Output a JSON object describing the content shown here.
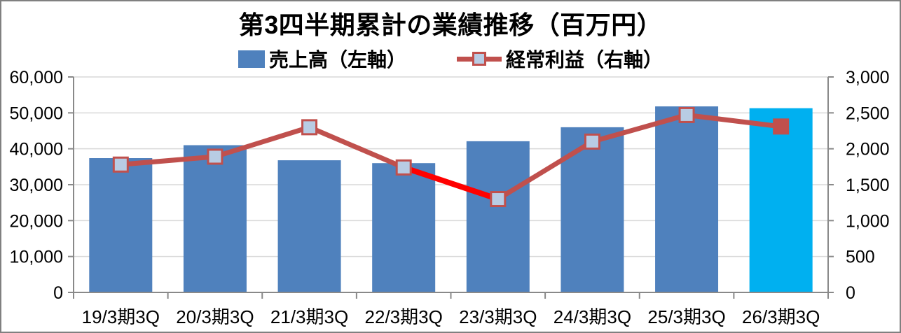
{
  "chart_data": {
    "type": "combo-bar-line",
    "title": "第3四半期累計の業績推移（百万円）",
    "categories": [
      "19/3期3Q",
      "20/3期3Q",
      "21/3期3Q",
      "22/3期3Q",
      "23/3期3Q",
      "24/3期3Q",
      "25/3期3Q",
      "26/3期3Q"
    ],
    "series": [
      {
        "name": "売上高（左軸）",
        "type": "bar",
        "axis": "left",
        "values": [
          37400,
          41000,
          36800,
          36000,
          42100,
          46000,
          51800,
          51300
        ],
        "bar_colors": [
          "#4F81BD",
          "#4F81BD",
          "#4F81BD",
          "#4F81BD",
          "#4F81BD",
          "#4F81BD",
          "#4F81BD",
          "#00B0F0"
        ]
      },
      {
        "name": "経常利益（右軸）",
        "type": "line",
        "axis": "right",
        "values": [
          1780,
          1890,
          2300,
          1740,
          1300,
          2100,
          2470,
          2310
        ],
        "line_color": "#C0504D",
        "highlight_segments": [
          {
            "from_index": 3,
            "to_index": 4,
            "color": "#FF0000"
          }
        ],
        "marker_fill": "#B8CCE4",
        "marker_border": "#C0504D",
        "last_marker_fill": "#C0504D"
      }
    ],
    "left_axis": {
      "min": 0,
      "max": 60000,
      "step": 10000,
      "tick_labels": [
        "0",
        "10,000",
        "20,000",
        "30,000",
        "40,000",
        "50,000",
        "60,000"
      ]
    },
    "right_axis": {
      "min": 0,
      "max": 3000,
      "step": 500,
      "tick_labels": [
        "0",
        "500",
        "1,000",
        "1,500",
        "2,000",
        "2,500",
        "3,000"
      ]
    },
    "grid": true,
    "legend_position": "top",
    "colors": {
      "grid": "#D9D9D9",
      "axis": "#898989",
      "frame_border": "#808080",
      "text": "#000000"
    }
  }
}
